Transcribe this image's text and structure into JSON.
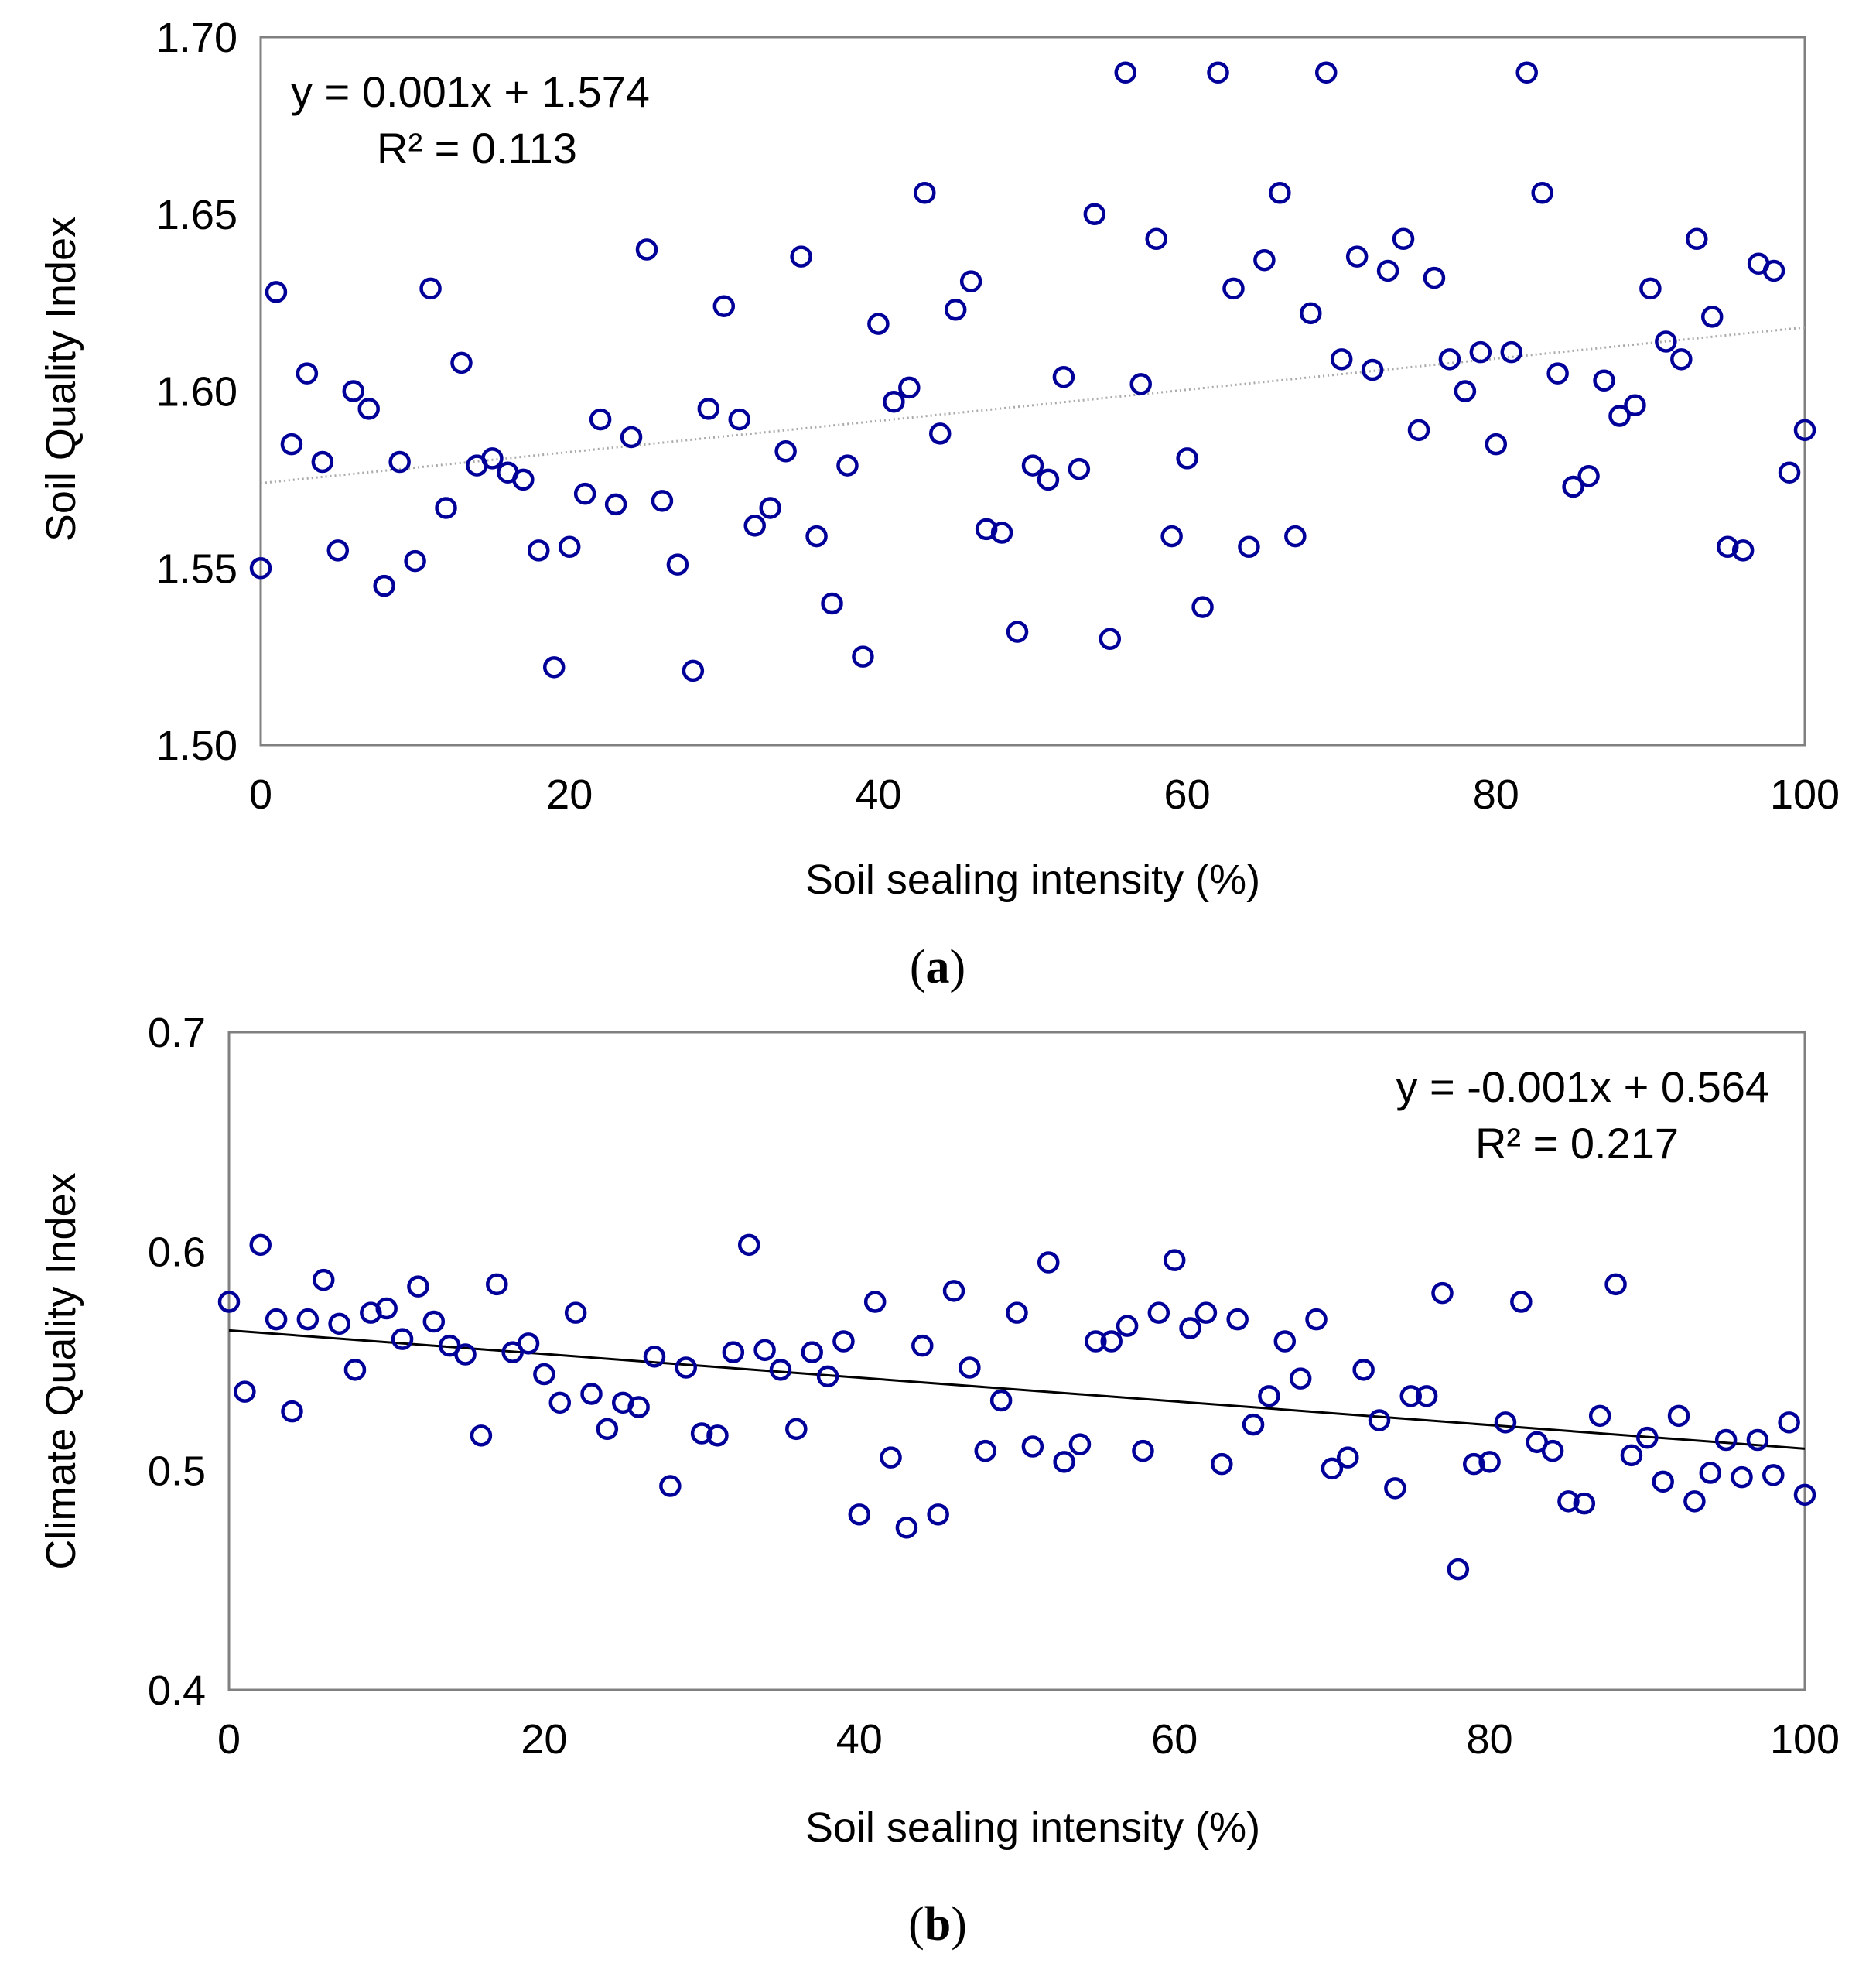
{
  "chart_data": [
    {
      "type": "scatter",
      "panel_label": "a",
      "xlabel": "Soil sealing intensity (%)",
      "ylabel": "Soil Quality Index",
      "xlim": [
        0,
        100
      ],
      "ylim": [
        1.5,
        1.7
      ],
      "x_ticks": [
        "0",
        "20",
        "40",
        "60",
        "80",
        "100"
      ],
      "y_ticks": [
        "1.50",
        "1.55",
        "1.60",
        "1.65",
        "1.70"
      ],
      "grid": false,
      "legend": "none",
      "marker_color": "#000099",
      "trendline": {
        "slope": 0.00044,
        "intercept": 1.574,
        "style": "dotted",
        "color": "#aaaaaa"
      },
      "equation": "y = 0.001x + 1.574",
      "r_squared": "R² = 0.113",
      "series": [
        {
          "x": [
            0,
            1,
            2,
            3,
            4,
            5,
            6,
            7,
            8,
            9,
            10,
            11,
            12,
            13,
            14,
            15,
            16,
            17,
            18,
            19,
            20,
            21,
            22,
            23,
            24,
            25,
            26,
            27,
            28,
            29,
            30,
            31,
            32,
            33,
            34,
            35,
            36,
            37,
            38,
            39,
            40,
            41,
            42,
            43,
            44,
            45,
            46,
            47,
            48,
            49,
            50,
            51,
            52,
            53,
            54,
            55,
            56,
            57,
            58,
            59,
            60,
            61,
            62,
            63,
            64,
            65,
            66,
            67,
            68,
            69,
            70,
            71,
            72,
            73,
            74,
            75,
            76,
            77,
            78,
            79,
            80,
            81,
            82,
            83,
            84,
            85,
            86,
            87,
            88,
            89,
            90,
            91,
            92,
            93,
            94,
            95,
            96,
            97,
            98,
            99,
            100
          ],
          "y": [
            1.55,
            1.628,
            1.585,
            1.605,
            1.58,
            1.555,
            1.6,
            1.595,
            1.545,
            1.58,
            1.552,
            1.629,
            1.567,
            1.608,
            1.579,
            1.581,
            1.577,
            1.575,
            1.555,
            1.522,
            1.556,
            1.571,
            1.592,
            1.568,
            1.587,
            1.64,
            1.569,
            1.551,
            1.521,
            1.595,
            1.624,
            1.592,
            1.562,
            1.567,
            1.583,
            1.638,
            1.559,
            1.54,
            1.579,
            1.525,
            1.619,
            1.597,
            1.601,
            1.656,
            1.588,
            1.623,
            1.631,
            1.561,
            1.56,
            1.532,
            1.579,
            1.575,
            1.604,
            1.578,
            1.65,
            1.53,
            1.69,
            1.602,
            1.643,
            1.559,
            1.581,
            1.539,
            1.69,
            1.629,
            1.556,
            1.637,
            1.656,
            1.559,
            1.622,
            1.69,
            1.609,
            1.638,
            1.606,
            1.634,
            1.643,
            1.589,
            1.632,
            1.609,
            1.6,
            1.611,
            1.585,
            1.611,
            1.69,
            1.656,
            1.605,
            1.573,
            1.576,
            1.603,
            1.593,
            1.596,
            1.629,
            1.614,
            1.609,
            1.643,
            1.621,
            1.556,
            1.555,
            1.636,
            1.634,
            1.577,
            1.589
          ]
        }
      ]
    },
    {
      "type": "scatter",
      "panel_label": "b",
      "xlabel": "Soil sealing intensity (%)",
      "ylabel": "Climate Quality Index",
      "xlim": [
        0,
        100
      ],
      "ylim": [
        0.4,
        0.7
      ],
      "x_ticks": [
        "0",
        "20",
        "40",
        "60",
        "80",
        "100"
      ],
      "y_ticks": [
        "0.4",
        "0.5",
        "0.6",
        "0.7"
      ],
      "grid": false,
      "legend": "none",
      "marker_color": "#000099",
      "trendline": {
        "slope": -0.00054,
        "intercept": 0.564,
        "style": "solid",
        "color": "#000000"
      },
      "equation": "y = -0.001x + 0.564",
      "r_squared": "R² = 0.217",
      "series": [
        {
          "x": [
            0,
            1,
            2,
            3,
            4,
            5,
            6,
            7,
            8,
            9,
            10,
            11,
            12,
            13,
            14,
            15,
            16,
            17,
            18,
            19,
            20,
            21,
            22,
            23,
            24,
            25,
            26,
            27,
            28,
            29,
            30,
            31,
            32,
            33,
            34,
            35,
            36,
            37,
            38,
            39,
            40,
            41,
            42,
            43,
            44,
            45,
            46,
            47,
            48,
            49,
            50,
            51,
            52,
            53,
            54,
            55,
            56,
            57,
            58,
            59,
            60,
            61,
            62,
            63,
            64,
            65,
            66,
            67,
            68,
            69,
            70,
            71,
            72,
            73,
            74,
            75,
            76,
            77,
            78,
            79,
            80,
            81,
            82,
            83,
            84,
            85,
            86,
            87,
            88,
            89,
            90,
            91,
            92,
            93,
            94,
            95,
            96,
            97,
            98,
            99,
            100
          ],
          "y": [
            0.577,
            0.536,
            0.603,
            0.569,
            0.527,
            0.569,
            0.587,
            0.567,
            0.546,
            0.572,
            0.574,
            0.56,
            0.584,
            0.568,
            0.557,
            0.553,
            0.516,
            0.585,
            0.554,
            0.558,
            0.544,
            0.531,
            0.572,
            0.535,
            0.519,
            0.531,
            0.529,
            0.552,
            0.493,
            0.547,
            0.517,
            0.516,
            0.554,
            0.603,
            0.555,
            0.546,
            0.519,
            0.554,
            0.543,
            0.559,
            0.48,
            0.577,
            0.506,
            0.474,
            0.557,
            0.48,
            0.582,
            0.547,
            0.509,
            0.532,
            0.572,
            0.511,
            0.595,
            0.504,
            0.512,
            0.559,
            0.559,
            0.566,
            0.509,
            0.572,
            0.596,
            0.565,
            0.572,
            0.503,
            0.569,
            0.521,
            0.534,
            0.559,
            0.542,
            0.569,
            0.501,
            0.506,
            0.546,
            0.523,
            0.492,
            0.534,
            0.534,
            0.581,
            0.455,
            0.503,
            0.504,
            0.522,
            0.577,
            0.513,
            0.509,
            0.486,
            0.485,
            0.525,
            0.585,
            0.507,
            0.515,
            0.495,
            0.525,
            0.486,
            0.499,
            0.514,
            0.497,
            0.514,
            0.498,
            0.522,
            0.489
          ]
        }
      ]
    }
  ]
}
